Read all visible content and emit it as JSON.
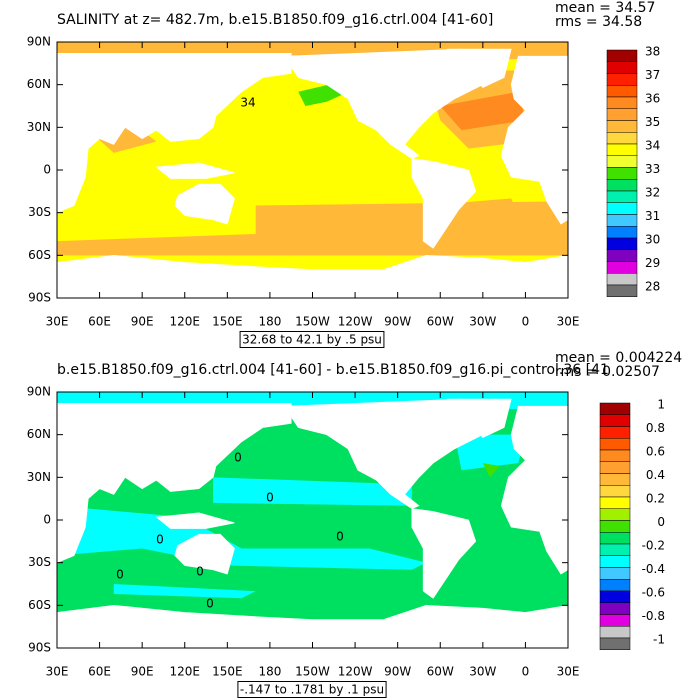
{
  "panels": [
    {
      "title": "SALINITY at z= 482.7m, b.e15.B1850.f09_g16.ctrl.004 [41-60]",
      "stats": [
        "mean = 34.57",
        "rms = 34.58"
      ],
      "lat_labels": [
        "90N",
        "60N",
        "30N",
        "0",
        "30S",
        "60S",
        "90S"
      ],
      "lon_labels": [
        "30E",
        "60E",
        "90E",
        "120E",
        "150E",
        "180",
        "150W",
        "120W",
        "90W",
        "60W",
        "30W",
        "0",
        "30E"
      ],
      "contour_labels": [
        "34"
      ],
      "colorbar": {
        "labels": [
          "38",
          "37",
          "36",
          "35",
          "34",
          "33",
          "32",
          "31",
          "30",
          "29",
          "28"
        ],
        "colors": [
          "#a00000",
          "#e00000",
          "#ff2000",
          "#ff5a00",
          "#ff8a20",
          "#ffa030",
          "#ffb838",
          "#ffd840",
          "#ffff00",
          "#f0ff30",
          "#40e000",
          "#00e060",
          "#00f0b0",
          "#00ffff",
          "#40c8ff",
          "#0080ff",
          "#0000e0",
          "#8000c0",
          "#e000e0",
          "#c8c8c8"
        ]
      },
      "footnote": "32.68 to 42.1 by .5 psu"
    },
    {
      "title": "b.e15.B1850.f09_g16.ctrl.004 [41-60] - b.e15.B1850.f09_g16.pi_control.36 [41",
      "stats": [
        "mean = 0.004224",
        "rms = 0.02507"
      ],
      "lat_labels": [
        "90N",
        "60N",
        "30N",
        "0",
        "30S",
        "60S",
        "90S"
      ],
      "lon_labels": [
        "30E",
        "60E",
        "90E",
        "120E",
        "150E",
        "180",
        "150W",
        "120W",
        "90W",
        "60W",
        "30W",
        "0",
        "30E"
      ],
      "contour_labels": [
        "0",
        "0",
        "0",
        "0",
        "0",
        "0",
        "0"
      ],
      "colorbar": {
        "labels": [
          "1",
          "0.8",
          "0.6",
          "0.4",
          "0.2",
          "0",
          "-0.2",
          "-0.4",
          "-0.6",
          "-0.8",
          "-1"
        ],
        "colors": [
          "#a00000",
          "#e00000",
          "#ff2000",
          "#ff5a00",
          "#ff8a20",
          "#ffa030",
          "#ffb838",
          "#ffd840",
          "#ffff00",
          "#a0f000",
          "#40e000",
          "#00e060",
          "#00f0b0",
          "#00ffff",
          "#40c8ff",
          "#0080ff",
          "#0000e0",
          "#8000c0",
          "#e000e0",
          "#c8c8c8"
        ]
      },
      "footnote": "-.147 to .1781 by .1 psu"
    }
  ]
}
